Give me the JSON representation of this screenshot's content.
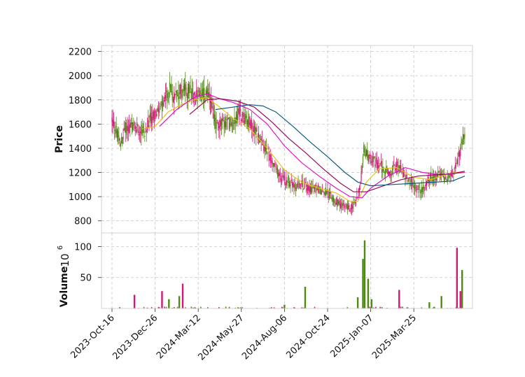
{
  "chart_data": {
    "type": "candlestick_with_volume",
    "title": "",
    "ylabel": "Price",
    "volume_label": "Volume",
    "volume_exponent_label": "10",
    "volume_exponent_power": "6",
    "x_tick_labels": [
      "2023-Oct-16",
      "2023-Dec-26",
      "2024-Mar-12",
      "2024-May-27",
      "2024-Aug-06",
      "2024-Oct-24",
      "2025-Jan-07",
      "2025-Mar-25"
    ],
    "price_yticks": [
      800,
      1000,
      1200,
      1400,
      1600,
      1800,
      2000,
      2200
    ],
    "price_ylim": [
      700,
      2250
    ],
    "volume_yticks": [
      50,
      100
    ],
    "volume_ylim": [
      0,
      122
    ],
    "grid": true,
    "n_sessions": 410,
    "x_tick_sessions": [
      0,
      50,
      100,
      150,
      200,
      250,
      300,
      350
    ],
    "colors": {
      "up": "#4f8a10",
      "down": "#d4167a",
      "ma_short": "#e6c21a",
      "ma_mid": "#dd14c8",
      "ma_long": "#960a5a",
      "ma_longest": "#0b5a84",
      "grid": "#c8c8c8"
    },
    "price_path": [
      [
        0,
        1640
      ],
      [
        5,
        1540
      ],
      [
        10,
        1420
      ],
      [
        15,
        1560
      ],
      [
        22,
        1580
      ],
      [
        30,
        1560
      ],
      [
        40,
        1540
      ],
      [
        45,
        1650
      ],
      [
        55,
        1700
      ],
      [
        62,
        1800
      ],
      [
        68,
        1900
      ],
      [
        72,
        1820
      ],
      [
        80,
        1880
      ],
      [
        90,
        1870
      ],
      [
        98,
        1820
      ],
      [
        105,
        1840
      ],
      [
        110,
        1860
      ],
      [
        115,
        1760
      ],
      [
        120,
        1600
      ],
      [
        130,
        1600
      ],
      [
        140,
        1620
      ],
      [
        148,
        1700
      ],
      [
        155,
        1640
      ],
      [
        165,
        1560
      ],
      [
        172,
        1480
      ],
      [
        180,
        1360
      ],
      [
        190,
        1220
      ],
      [
        198,
        1150
      ],
      [
        205,
        1120
      ],
      [
        212,
        1080
      ],
      [
        220,
        1100
      ],
      [
        230,
        1070
      ],
      [
        240,
        1060
      ],
      [
        250,
        1030
      ],
      [
        260,
        960
      ],
      [
        268,
        930
      ],
      [
        275,
        900
      ],
      [
        282,
        950
      ],
      [
        288,
        1100
      ],
      [
        292,
        1380
      ],
      [
        298,
        1320
      ],
      [
        306,
        1280
      ],
      [
        314,
        1240
      ],
      [
        322,
        1180
      ],
      [
        330,
        1260
      ],
      [
        338,
        1200
      ],
      [
        346,
        1120
      ],
      [
        354,
        1060
      ],
      [
        360,
        1050
      ],
      [
        366,
        1140
      ],
      [
        374,
        1170
      ],
      [
        382,
        1180
      ],
      [
        390,
        1160
      ],
      [
        396,
        1180
      ],
      [
        402,
        1330
      ],
      [
        409,
        1520
      ]
    ],
    "volume_spikes": [
      {
        "session": 26,
        "value": 22,
        "dir": "down"
      },
      {
        "session": 58,
        "value": 28,
        "dir": "down"
      },
      {
        "session": 82,
        "value": 40,
        "dir": "down"
      },
      {
        "session": 78,
        "value": 20,
        "dir": "up"
      },
      {
        "session": 66,
        "value": 15,
        "dir": "up"
      },
      {
        "session": 200,
        "value": 6,
        "dir": "up"
      },
      {
        "session": 224,
        "value": 35,
        "dir": "up"
      },
      {
        "session": 285,
        "value": 18,
        "dir": "up"
      },
      {
        "session": 293,
        "value": 110,
        "dir": "up"
      },
      {
        "session": 291,
        "value": 80,
        "dir": "up"
      },
      {
        "session": 297,
        "value": 48,
        "dir": "up"
      },
      {
        "session": 301,
        "value": 15,
        "dir": "up"
      },
      {
        "session": 333,
        "value": 30,
        "dir": "down"
      },
      {
        "session": 368,
        "value": 10,
        "dir": "up"
      },
      {
        "session": 382,
        "value": 20,
        "dir": "up"
      },
      {
        "session": 400,
        "value": 98,
        "dir": "down"
      },
      {
        "session": 404,
        "value": 28,
        "dir": "down"
      },
      {
        "session": 406,
        "value": 62,
        "dir": "up"
      }
    ],
    "moving_averages": [
      {
        "key": "ma_short",
        "points": [
          [
            35,
            1560
          ],
          [
            50,
            1580
          ],
          [
            65,
            1700
          ],
          [
            80,
            1760
          ],
          [
            95,
            1800
          ],
          [
            110,
            1820
          ],
          [
            125,
            1740
          ],
          [
            140,
            1650
          ],
          [
            160,
            1560
          ],
          [
            180,
            1400
          ],
          [
            200,
            1220
          ],
          [
            220,
            1120
          ],
          [
            240,
            1070
          ],
          [
            260,
            1030
          ],
          [
            276,
            960
          ],
          [
            285,
            960
          ],
          [
            295,
            1120
          ],
          [
            310,
            1230
          ],
          [
            330,
            1240
          ],
          [
            350,
            1160
          ],
          [
            370,
            1140
          ],
          [
            390,
            1190
          ],
          [
            409,
            1210
          ]
        ]
      },
      {
        "key": "ma_mid",
        "points": [
          [
            55,
            1580
          ],
          [
            75,
            1720
          ],
          [
            95,
            1820
          ],
          [
            110,
            1850
          ],
          [
            125,
            1810
          ],
          [
            140,
            1780
          ],
          [
            160,
            1720
          ],
          [
            180,
            1600
          ],
          [
            200,
            1420
          ],
          [
            220,
            1280
          ],
          [
            240,
            1170
          ],
          [
            260,
            1070
          ],
          [
            276,
            1000
          ],
          [
            290,
            990
          ],
          [
            300,
            1070
          ],
          [
            320,
            1170
          ],
          [
            340,
            1240
          ],
          [
            360,
            1200
          ],
          [
            380,
            1180
          ],
          [
            409,
            1200
          ]
        ]
      },
      {
        "key": "ma_long",
        "points": [
          [
            90,
            1680
          ],
          [
            110,
            1800
          ],
          [
            125,
            1810
          ],
          [
            145,
            1790
          ],
          [
            165,
            1740
          ],
          [
            185,
            1620
          ],
          [
            205,
            1480
          ],
          [
            225,
            1360
          ],
          [
            245,
            1230
          ],
          [
            265,
            1110
          ],
          [
            280,
            1040
          ],
          [
            295,
            1040
          ],
          [
            315,
            1090
          ],
          [
            335,
            1140
          ],
          [
            355,
            1170
          ],
          [
            375,
            1180
          ],
          [
            395,
            1190
          ],
          [
            409,
            1210
          ]
        ]
      },
      {
        "key": "ma_longest",
        "points": [
          [
            120,
            1720
          ],
          [
            140,
            1740
          ],
          [
            160,
            1760
          ],
          [
            175,
            1750
          ],
          [
            190,
            1700
          ],
          [
            210,
            1580
          ],
          [
            230,
            1450
          ],
          [
            250,
            1330
          ],
          [
            270,
            1200
          ],
          [
            285,
            1120
          ],
          [
            300,
            1090
          ],
          [
            325,
            1100
          ],
          [
            350,
            1110
          ],
          [
            375,
            1120
          ],
          [
            395,
            1130
          ],
          [
            409,
            1170
          ]
        ]
      }
    ]
  }
}
